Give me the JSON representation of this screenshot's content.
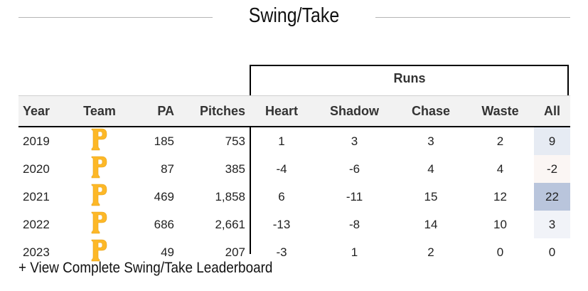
{
  "section": {
    "title": "Swing/Take"
  },
  "group_header": "Runs",
  "columns": {
    "year": "Year",
    "team": "Team",
    "pa": "PA",
    "pitches": "Pitches",
    "heart": "Heart",
    "shadow": "Shadow",
    "chase": "Chase",
    "waste": "Waste",
    "all": "All"
  },
  "rows": [
    {
      "year": "2019",
      "team_icon": "pirates-p-logo-icon",
      "pa": "185",
      "pitches": "753",
      "heart": "1",
      "shadow": "3",
      "chase": "3",
      "waste": "2",
      "all": "9",
      "all_bg": "#e6ebf3"
    },
    {
      "year": "2020",
      "team_icon": "pirates-p-logo-icon",
      "pa": "87",
      "pitches": "385",
      "heart": "-4",
      "shadow": "-6",
      "chase": "4",
      "waste": "4",
      "all": "-2",
      "all_bg": "#fbf6f4"
    },
    {
      "year": "2021",
      "team_icon": "pirates-p-logo-icon",
      "pa": "469",
      "pitches": "1,858",
      "heart": "6",
      "shadow": "-11",
      "chase": "15",
      "waste": "12",
      "all": "22",
      "all_bg": "#b9c5dc"
    },
    {
      "year": "2022",
      "team_icon": "pirates-p-logo-icon",
      "pa": "686",
      "pitches": "2,661",
      "heart": "-13",
      "shadow": "-8",
      "chase": "14",
      "waste": "10",
      "all": "3",
      "all_bg": "#f1f3f8"
    },
    {
      "year": "2023",
      "team_icon": "pirates-p-logo-icon",
      "pa": "49",
      "pitches": "207",
      "heart": "-3",
      "shadow": "1",
      "chase": "2",
      "waste": "0",
      "all": "0",
      "all_bg": "#ffffff"
    }
  ],
  "footer_link": "+ View Complete Swing/Take Leaderboard",
  "colors": {
    "logo_gold": "#FDB827"
  }
}
